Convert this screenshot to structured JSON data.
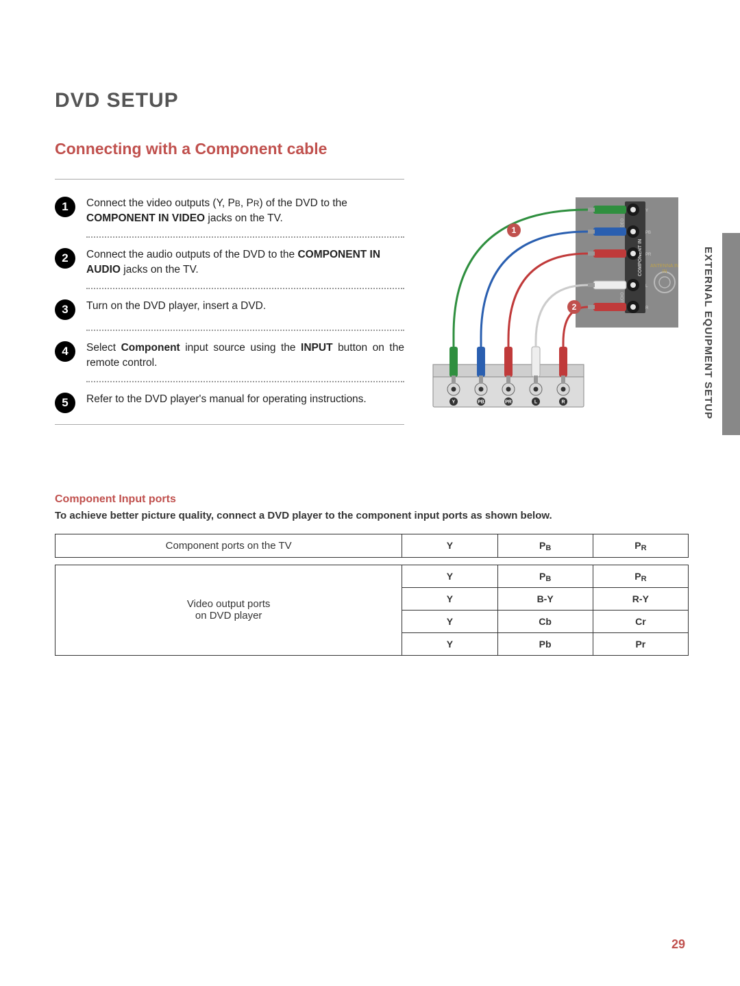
{
  "page": {
    "title": "DVD SETUP",
    "subtitle": "Connecting with a Component cable",
    "side_text": "EXTERNAL EQUIPMENT SETUP",
    "page_number": "29"
  },
  "steps": [
    {
      "n": "1",
      "html": "Connect the video outputs (Y, P<span class='smallcap'>B</span>, P<span class='smallcap'>R</span>) of the DVD to the <b>COMPONENT IN VIDEO</b> jacks on the TV."
    },
    {
      "n": "2",
      "html": "Connect the audio outputs of the DVD to the <b>COMPONENT IN AUDIO</b> jacks on the TV."
    },
    {
      "n": "3",
      "html": "Turn on the DVD player, insert a DVD."
    },
    {
      "n": "4",
      "html": "Select <b>Component</b> input source using the <b>INPUT</b> button on the remote control."
    },
    {
      "n": "5",
      "html": "Refer to the DVD player's manual for operating instructions."
    }
  ],
  "component_block": {
    "title": "Component Input ports",
    "subtitle": "To achieve better picture quality, connect a DVD player to the component input ports as shown below."
  },
  "table1": {
    "row_header": "Component ports on the TV",
    "cells": [
      "Y",
      "P<span class='sub-port'>B</span>",
      "P<span class='sub-port'>R</span>"
    ]
  },
  "table2": {
    "row_header": "Video output ports<br>on DVD player",
    "rows": [
      [
        "Y",
        "P<span class='sub-port'>B</span>",
        "P<span class='sub-port'>R</span>"
      ],
      [
        "Y",
        "B-Y",
        "R-Y"
      ],
      [
        "Y",
        "Cb",
        "Cr"
      ],
      [
        "Y",
        "Pb",
        "Pr"
      ]
    ]
  },
  "diagram": {
    "tv_labels": {
      "video": "VIDEO",
      "component_in": "COMPONENT IN",
      "audio": "AUDIO",
      "antenna": "ANTENNA IN"
    },
    "tv_port_labels": [
      "Y",
      "PB",
      "PR",
      "L",
      "R"
    ],
    "dvd_port_labels": [
      "Y",
      "PB",
      "PR",
      "L",
      "R"
    ],
    "callouts": [
      "1",
      "2"
    ],
    "colors": {
      "tv_panel": "#8a8a8a",
      "tv_panel_dark": "#6a6a6a",
      "cable_green": "#2f8f3f",
      "cable_blue": "#2a5fb0",
      "cable_red": "#c03a3a",
      "cable_white": "#eeeeee",
      "callout_bg": "#c0504d",
      "jack_outer": "#333333",
      "jack_inner": "#e8e8e8",
      "antenna_ring": "#bbbbbb",
      "dvd_body": "#dcdcdc",
      "dvd_outline": "#888888",
      "text": "#777777"
    }
  }
}
